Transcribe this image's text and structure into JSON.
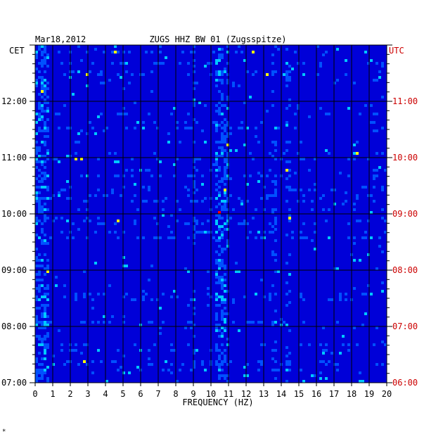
{
  "chart_data": {
    "type": "heatmap",
    "date": "Mar18,2012",
    "title": "ZUGS HHZ BW 01 (Zugsspitze)",
    "left_timezone": "CET",
    "right_timezone": "UTC",
    "xlabel": "FREQUENCY (HZ)",
    "xlim": [
      0,
      20
    ],
    "x_ticks": [
      "0",
      "1",
      "2",
      "3",
      "4",
      "5",
      "6",
      "7",
      "8",
      "9",
      "10",
      "11",
      "12",
      "13",
      "14",
      "15",
      "16",
      "17",
      "18",
      "19",
      "20"
    ],
    "time_range_cet": [
      "07:00",
      "13:00"
    ],
    "cet_ticks": [
      "12:00",
      "11:00",
      "10:00",
      "09:00",
      "08:00",
      "07:00"
    ],
    "utc_ticks": [
      "11:00",
      "10:00",
      "09:00",
      "08:00",
      "07:00",
      "06:00"
    ],
    "grid": true,
    "colormap": [
      "#00007a",
      "#0000d8",
      "#0050ff",
      "#00c8ff",
      "#ffff00",
      "#ff0000"
    ],
    "footnote": "*"
  }
}
